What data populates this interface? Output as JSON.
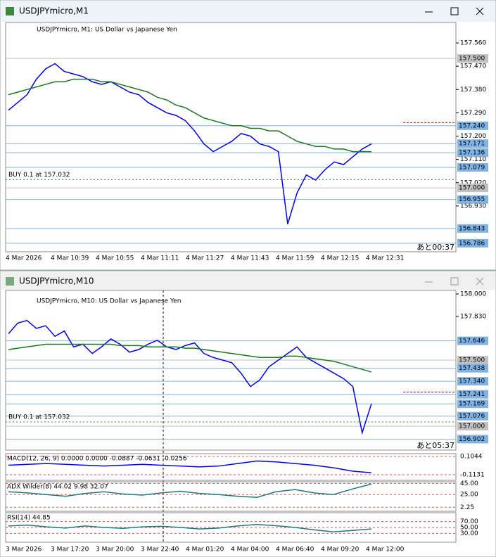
{
  "windows": [
    {
      "title": "USDJPYmicro,M1",
      "header": "USDJPYmicro, M1:  US Dollar vs Japanese Yen",
      "main": {
        "type": "line",
        "ylim": [
          156.753,
          157.639
        ],
        "yticks": [
          {
            "value": 157.56,
            "label": "157.560"
          },
          {
            "value": 157.47,
            "label": "157.470"
          },
          {
            "value": 157.38,
            "label": "157.380"
          },
          {
            "value": 157.29,
            "label": "157.290"
          },
          {
            "value": 157.2,
            "label": "157.200"
          },
          {
            "value": 157.11,
            "label": "157.110"
          },
          {
            "value": 157.02,
            "label": "157.020"
          },
          {
            "value": 156.93,
            "label": "156.930"
          }
        ],
        "levels": [
          {
            "value": 157.5,
            "label": "157.500",
            "color": "#c0c0c0"
          },
          {
            "value": 157.24,
            "label": "157.240",
            "color": "#7fb2e5"
          },
          {
            "value": 157.171,
            "label": "157.171",
            "color": "#7fb2e5"
          },
          {
            "value": 157.136,
            "label": "157.136",
            "color": "#7fb2e5"
          },
          {
            "value": 157.079,
            "label": "157.079",
            "color": "#7fb2e5"
          },
          {
            "value": 157.0,
            "label": "157.000",
            "color": "#c0c0c0"
          },
          {
            "value": 156.955,
            "label": "156.955",
            "color": "#7fb2e5"
          },
          {
            "value": 156.843,
            "label": "156.843",
            "color": "#7fb2e5"
          },
          {
            "value": 156.786,
            "label": "156.786",
            "color": "#7fb2e5"
          }
        ],
        "alert_levels": [
          157.252
        ],
        "order": {
          "label": "BUY 0.1 at 157.032",
          "value": 157.032,
          "color": "#2e8b57"
        },
        "countdown": "あと00:37",
        "x_labels": [
          "4 Mar 2026",
          "4 Mar 10:39",
          "4 Mar 10:55",
          "4 Mar 11:11",
          "4 Mar 11:27",
          "4 Mar 11:43",
          "4 Mar 11:59",
          "4 Mar 12:15",
          "4 Mar 12:31"
        ],
        "series": [
          {
            "color": "#0000ff",
            "values": [
              157.3,
              157.33,
              157.36,
              157.42,
              157.46,
              157.48,
              157.45,
              157.44,
              157.43,
              157.41,
              157.4,
              157.41,
              157.39,
              157.37,
              157.36,
              157.33,
              157.31,
              157.29,
              157.28,
              157.26,
              157.22,
              157.17,
              157.14,
              157.16,
              157.18,
              157.21,
              157.2,
              157.17,
              157.16,
              157.14,
              156.86,
              156.98,
              157.05,
              157.03,
              157.07,
              157.1,
              157.09,
              157.12,
              157.15,
              157.17
            ]
          },
          {
            "color": "#1a7a1a",
            "values": [
              157.36,
              157.37,
              157.38,
              157.39,
              157.4,
              157.41,
              157.41,
              157.42,
              157.42,
              157.42,
              157.41,
              157.41,
              157.4,
              157.39,
              157.38,
              157.37,
              157.35,
              157.34,
              157.32,
              157.31,
              157.29,
              157.27,
              157.26,
              157.25,
              157.24,
              157.24,
              157.23,
              157.23,
              157.22,
              157.22,
              157.2,
              157.18,
              157.17,
              157.16,
              157.16,
              157.15,
              157.15,
              157.14,
              157.14,
              157.14
            ]
          }
        ]
      }
    },
    {
      "title": "USDJPYmicro,M10",
      "header": "USDJPYmicro, M10:  US Dollar vs Japanese Yen",
      "main": {
        "type": "line",
        "ylim": [
          156.819,
          158.027
        ],
        "yticks": [
          {
            "value": 158.0,
            "label": "158.000"
          },
          {
            "value": 157.83,
            "label": "157.830"
          }
        ],
        "levels": [
          {
            "value": 157.646,
            "label": "157.646",
            "color": "#7fb2e5"
          },
          {
            "value": 157.5,
            "label": "157.500",
            "color": "#c0c0c0"
          },
          {
            "value": 157.438,
            "label": "157.438",
            "color": "#7fb2e5"
          },
          {
            "value": 157.34,
            "label": "157.340",
            "color": "#7fb2e5"
          },
          {
            "value": 157.241,
            "label": "157.241",
            "color": "#7fb2e5"
          },
          {
            "value": 157.169,
            "label": "157.169",
            "color": "#7fb2e5"
          },
          {
            "value": 157.076,
            "label": "157.076",
            "color": "#7fb2e5"
          },
          {
            "value": 157.0,
            "label": "157.000",
            "color": "#c0c0c0"
          },
          {
            "value": 156.902,
            "label": "156.902",
            "color": "#7fb2e5"
          }
        ],
        "alert_levels": [
          157.258
        ],
        "order": {
          "label": "BUY 0.1 at 157.032",
          "value": 157.032,
          "color": "#2e8b57"
        },
        "countdown": "あと05:37",
        "x_labels": [
          "3 Mar 2026",
          "3 Mar 17:20",
          "3 Mar 20:00",
          "3 Mar 22:40",
          "4 Mar 01:20",
          "4 Mar 04:00",
          "4 Mar 06:40",
          "4 Mar 09:20",
          "4 Mar 12:00"
        ],
        "series": [
          {
            "color": "#0000ff",
            "values": [
              157.7,
              157.78,
              157.8,
              157.74,
              157.76,
              157.68,
              157.72,
              157.6,
              157.62,
              157.55,
              157.6,
              157.66,
              157.62,
              157.56,
              157.58,
              157.62,
              157.65,
              157.6,
              157.58,
              157.61,
              157.63,
              157.55,
              157.52,
              157.5,
              157.48,
              157.4,
              157.3,
              157.35,
              157.45,
              157.5,
              157.55,
              157.6,
              157.52,
              157.48,
              157.44,
              157.4,
              157.36,
              157.3,
              156.95,
              157.17
            ]
          },
          {
            "color": "#1a7a1a",
            "values": [
              157.58,
              157.59,
              157.6,
              157.61,
              157.62,
              157.62,
              157.62,
              157.62,
              157.62,
              157.62,
              157.62,
              157.62,
              157.61,
              157.61,
              157.61,
              157.6,
              157.6,
              157.6,
              157.6,
              157.59,
              157.59,
              157.58,
              157.57,
              157.56,
              157.55,
              157.54,
              157.53,
              157.52,
              157.52,
              157.52,
              157.53,
              157.53,
              157.52,
              157.51,
              157.5,
              157.49,
              157.47,
              157.45,
              157.43,
              157.41
            ]
          }
        ]
      },
      "indicators": [
        {
          "label": "MACD(12, 26, 9) 0.0000 0.0000 -0.0887 -0.0631 -0.0256",
          "ylim": [
            -0.18,
            0.138
          ],
          "yticks": [
            0.1044,
            -0.1131
          ],
          "color": "#0000ff",
          "values": [
            0.0,
            0.01,
            0.02,
            0.01,
            0.0,
            -0.01,
            0.0,
            0.01,
            0.0,
            -0.01,
            -0.02,
            -0.01,
            0.02,
            0.05,
            0.04,
            0.02,
            0.0,
            -0.03,
            -0.07,
            -0.09
          ]
        },
        {
          "label": "ADX Wilder(8) 44.02 9.98 32.07",
          "ylim": [
            -5,
            48
          ],
          "yticks": [
            {
              "value": 45,
              "label": "45.00"
            },
            {
              "value": 25,
              "label": "25.00"
            },
            2.25
          ],
          "color": "#1a7a7a",
          "values": [
            30,
            28,
            25,
            22,
            27,
            30,
            26,
            24,
            28,
            31,
            27,
            25,
            22,
            20,
            30,
            34,
            28,
            25,
            35,
            44
          ]
        },
        {
          "label": "RSI(14) 44.85",
          "ylim": [
            0,
            100
          ],
          "yticks": [
            {
              "value": 70,
              "label": "70.00"
            },
            {
              "value": 50,
              "label": "50.00"
            },
            {
              "value": 30,
              "label": "30.00"
            }
          ],
          "color": "#1a7a7a",
          "values": [
            55,
            58,
            52,
            48,
            55,
            50,
            47,
            52,
            54,
            50,
            45,
            48,
            55,
            60,
            56,
            50,
            42,
            35,
            40,
            45
          ]
        }
      ]
    }
  ]
}
